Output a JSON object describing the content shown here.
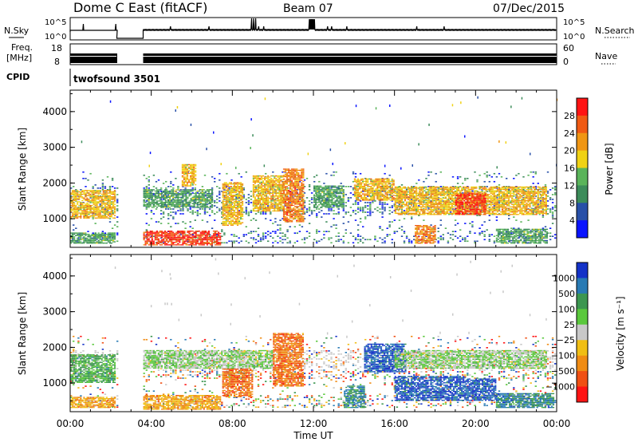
{
  "header": {
    "station": "Dome C East (fitACF)",
    "beam": "Beam 07",
    "date": "07/Dec/2015"
  },
  "status_panel": {
    "nsky_label": "N.Sky",
    "nsky_ticks": [
      "10^5",
      "10^0"
    ],
    "nsearch_label": "N.Search",
    "nsearch_ticks": [
      "10^5",
      "10^0"
    ],
    "freq_label_line1": "Freq.",
    "freq_label_line2": "[MHz]",
    "freq_ticks": [
      "18",
      "8"
    ],
    "nave_label": "Nave",
    "nave_ticks": [
      "60",
      "0"
    ],
    "cpid_label": "CPID",
    "cpid_value": "twofsound 3501"
  },
  "chart_data": [
    {
      "type": "heatmap",
      "title": "",
      "xlabel": "Time UT",
      "ylabel": "Slant Range [km]",
      "x_ticks": [
        "00:00",
        "04:00",
        "08:00",
        "12:00",
        "16:00",
        "20:00",
        "00:00"
      ],
      "x_range_hours": [
        0,
        24
      ],
      "y_ticks": [
        "1000",
        "2000",
        "3000",
        "4000"
      ],
      "ylim": [
        200,
        4600
      ],
      "colorbar_label": "Power [dB]",
      "colorbar_ticks": [
        "4",
        "8",
        "12",
        "16",
        "20",
        "24",
        "28"
      ],
      "colorbar_colors": [
        "#0a14ff",
        "#2850a8",
        "#3c8c5a",
        "#5ab45a",
        "#f0d214",
        "#f09614",
        "#f05a14",
        "#ff1414"
      ],
      "data_gap_hours": [
        2.3,
        3.6
      ],
      "regions": [
        {
          "t0": 0.0,
          "t1": 2.2,
          "r0": 1000,
          "r1": 1800,
          "level": 20
        },
        {
          "t0": 0.0,
          "t1": 2.2,
          "r0": 300,
          "r1": 600,
          "level": 12
        },
        {
          "t0": 3.6,
          "t1": 7.4,
          "r0": 250,
          "r1": 650,
          "level": 30
        },
        {
          "t0": 3.6,
          "t1": 7.0,
          "r0": 1300,
          "r1": 1800,
          "level": 12
        },
        {
          "t0": 5.5,
          "t1": 6.2,
          "r0": 1900,
          "r1": 2500,
          "level": 20
        },
        {
          "t0": 7.5,
          "t1": 8.5,
          "r0": 800,
          "r1": 2000,
          "level": 22
        },
        {
          "t0": 9.0,
          "t1": 10.5,
          "r0": 1200,
          "r1": 2200,
          "level": 20
        },
        {
          "t0": 10.5,
          "t1": 11.5,
          "r0": 900,
          "r1": 2400,
          "level": 24
        },
        {
          "t0": 12.0,
          "t1": 13.5,
          "r0": 1300,
          "r1": 1900,
          "level": 12
        },
        {
          "t0": 14.0,
          "t1": 16.0,
          "r0": 1500,
          "r1": 2100,
          "level": 20
        },
        {
          "t0": 17.0,
          "t1": 18.0,
          "r0": 300,
          "r1": 800,
          "level": 24
        },
        {
          "t0": 16.0,
          "t1": 23.5,
          "r0": 1100,
          "r1": 1900,
          "level": 20
        },
        {
          "t0": 19.0,
          "t1": 20.5,
          "r0": 1100,
          "r1": 1700,
          "level": 28
        },
        {
          "t0": 21.0,
          "t1": 23.5,
          "r0": 300,
          "r1": 700,
          "level": 12
        }
      ]
    },
    {
      "type": "heatmap",
      "title": "",
      "xlabel": "Time UT",
      "ylabel": "Slant Range [km]",
      "x_ticks": [
        "00:00",
        "04:00",
        "08:00",
        "12:00",
        "16:00",
        "20:00",
        "00:00"
      ],
      "x_range_hours": [
        0,
        24
      ],
      "y_ticks": [
        "1000",
        "2000",
        "3000",
        "4000"
      ],
      "ylim": [
        200,
        4600
      ],
      "colorbar_label": "Velocity [m s⁻¹]",
      "colorbar_ticks": [
        "1000",
        "500",
        "100",
        "25",
        "−25",
        "−100",
        "−500",
        "−1000"
      ],
      "colorbar_colors": [
        "#1432c8",
        "#287ab4",
        "#3c9650",
        "#5ac83c",
        "#c8c8c8",
        "#f0be14",
        "#f08c14",
        "#f05014",
        "#ff1414"
      ],
      "data_gap_hours": [
        2.3,
        3.6
      ],
      "regions": [
        {
          "t0": 0.0,
          "t1": 2.2,
          "r0": 1000,
          "r1": 1800,
          "level": 25
        },
        {
          "t0": 0.0,
          "t1": 2.2,
          "r0": 300,
          "r1": 600,
          "level": -100
        },
        {
          "t0": 3.6,
          "t1": 7.4,
          "r0": 250,
          "r1": 650,
          "level": -100
        },
        {
          "t0": 3.6,
          "t1": 10.0,
          "r0": 1400,
          "r1": 1900,
          "level": 0
        },
        {
          "t0": 7.5,
          "t1": 9.0,
          "r0": 600,
          "r1": 1400,
          "level": -500
        },
        {
          "t0": 10.0,
          "t1": 11.5,
          "r0": 900,
          "r1": 2400,
          "level": -500
        },
        {
          "t0": 13.5,
          "t1": 14.5,
          "r0": 300,
          "r1": 900,
          "level": 100
        },
        {
          "t0": 14.5,
          "t1": 16.5,
          "r0": 1300,
          "r1": 2100,
          "level": 500
        },
        {
          "t0": 16.0,
          "t1": 19.5,
          "r0": 500,
          "r1": 1200,
          "level": 500
        },
        {
          "t0": 16.0,
          "t1": 23.5,
          "r0": 1400,
          "r1": 1900,
          "level": 0
        },
        {
          "t0": 19.5,
          "t1": 21.0,
          "r0": 500,
          "r1": 1100,
          "level": 500
        },
        {
          "t0": 21.0,
          "t1": 23.8,
          "r0": 300,
          "r1": 700,
          "level": 100
        }
      ]
    }
  ]
}
